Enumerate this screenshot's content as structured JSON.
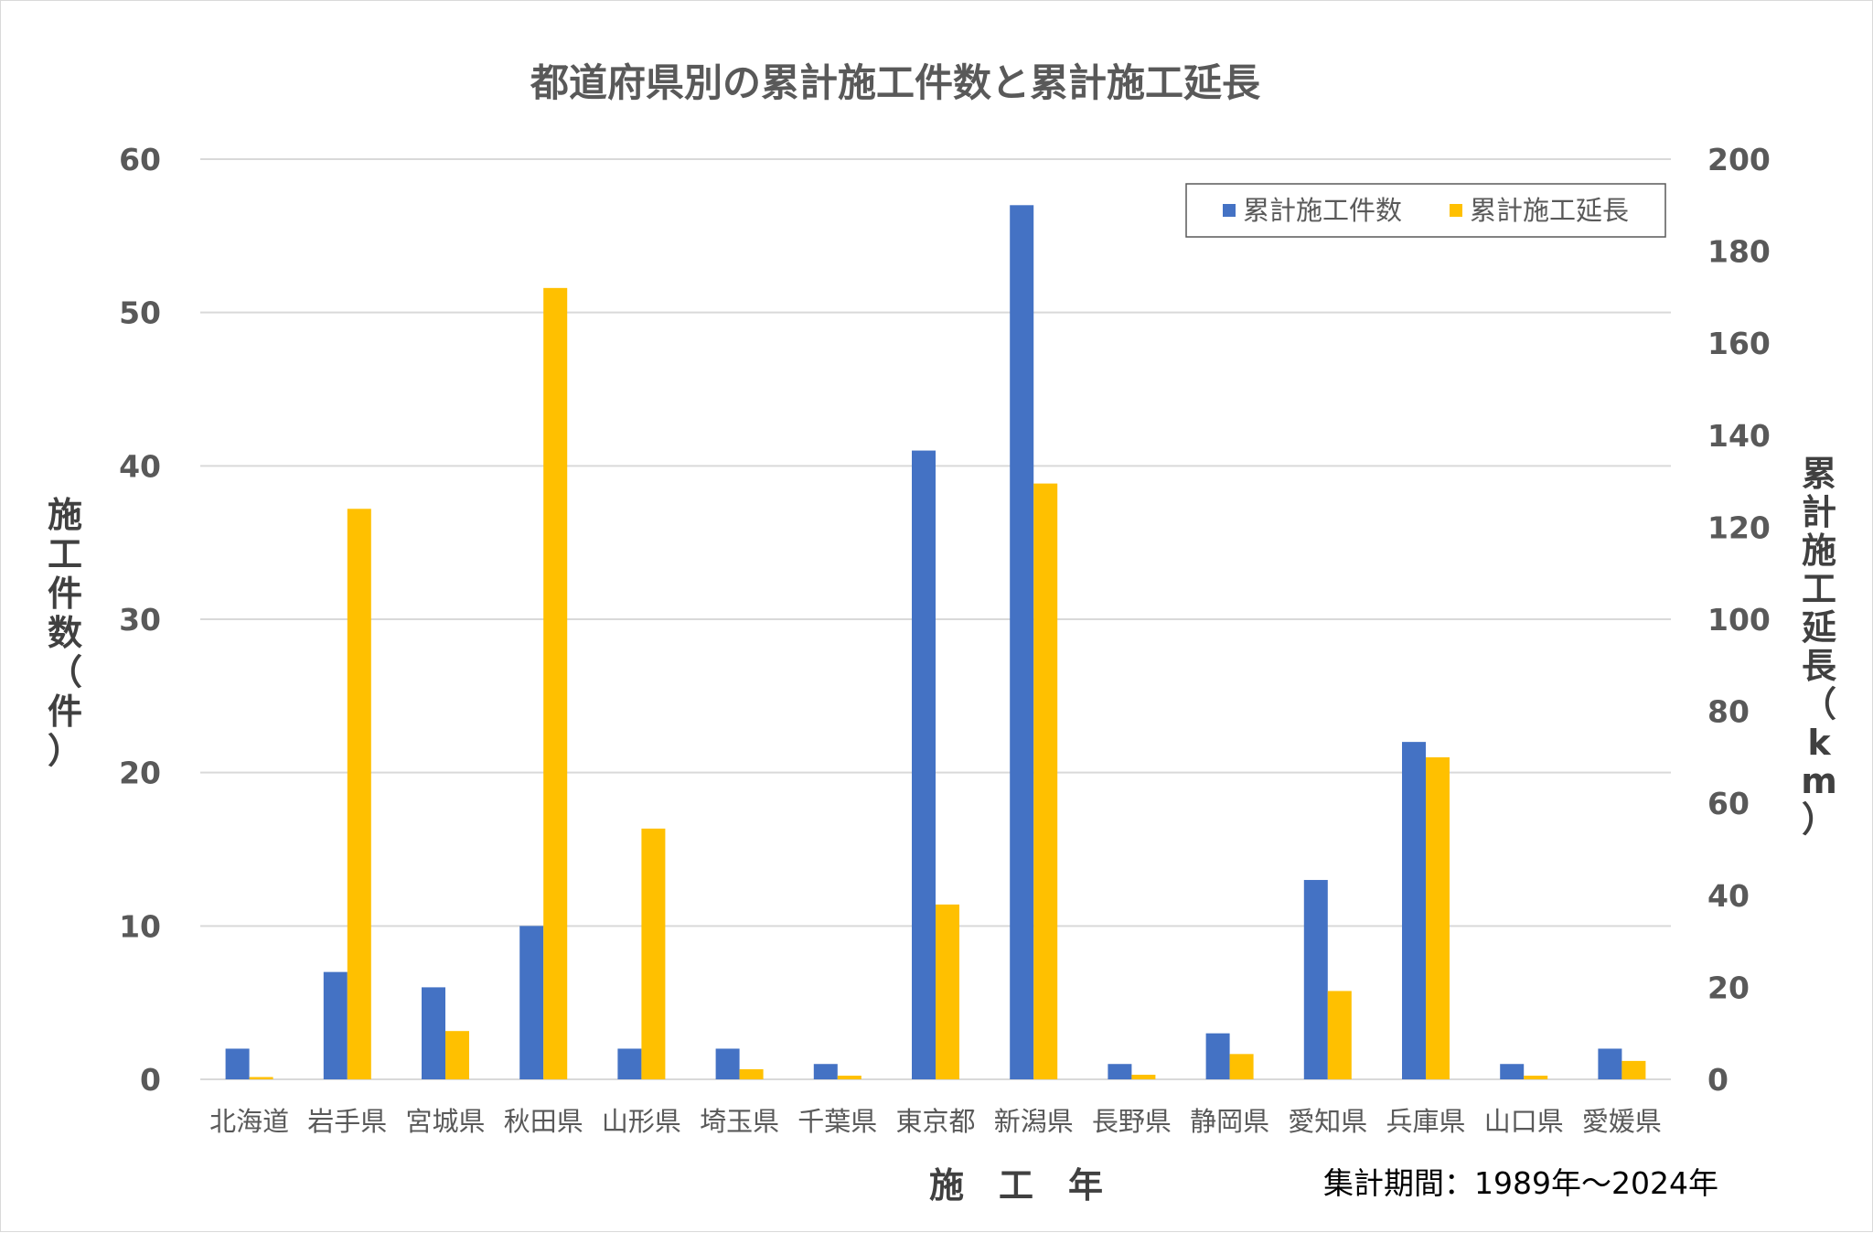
{
  "chart_data": {
    "type": "bar",
    "title": "都道府県別の累計施工件数と累計施工延長",
    "categories": [
      "北海道",
      "岩手県",
      "宮城県",
      "秋田県",
      "山形県",
      "埼玉県",
      "千葉県",
      "東京都",
      "新潟県",
      "長野県",
      "静岡県",
      "愛知県",
      "兵庫県",
      "山口県",
      "愛媛県"
    ],
    "series": [
      {
        "name": "累計施工件数",
        "axis": "left",
        "color": "#4472C4",
        "values": [
          2,
          7,
          6,
          10,
          2,
          2,
          1,
          41,
          57,
          1,
          3,
          13,
          22,
          1,
          2
        ]
      },
      {
        "name": "累計施工延長",
        "axis": "right",
        "color": "#FFC000",
        "values": [
          0.5,
          124,
          10.5,
          172,
          54.5,
          2.2,
          0.8,
          38,
          129.5,
          1,
          5.5,
          19.2,
          70,
          0.8,
          4
        ]
      }
    ],
    "xlabel": "施　工　年",
    "ylabel_left": "施工件数（件）",
    "ylabel_right": "累計施工延長（km）",
    "ylim_left": [
      0,
      60
    ],
    "yticks_left": [
      0,
      10,
      20,
      30,
      40,
      50,
      60
    ],
    "ylim_right": [
      0,
      200
    ],
    "yticks_right": [
      0,
      20,
      40,
      60,
      80,
      100,
      120,
      140,
      160,
      180,
      200
    ],
    "grid": true,
    "legend_position": "top-right",
    "note": "集計期間：1989年～2024年"
  }
}
